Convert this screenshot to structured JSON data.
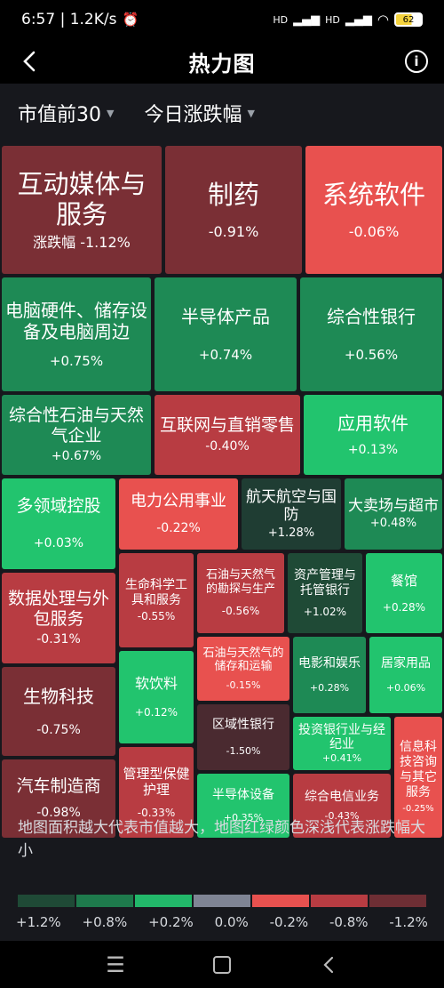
{
  "status": {
    "time": "6:57 | 1.2K/s",
    "net1": "HD",
    "net2": "HD",
    "wifi": "wifi",
    "battery": "62"
  },
  "header": {
    "title": "热力图",
    "back_icon": "chevron-left-icon",
    "info_icon": "info-icon"
  },
  "filters": [
    {
      "label": "市值前30"
    },
    {
      "label": "今日涨跌幅"
    }
  ],
  "colors": {
    "dark_red": "#7a2f35",
    "mid_red": "#b83c42",
    "red": "#e8514f",
    "dark_green": "#1f3d33",
    "mid_green": "#1e8a55",
    "green": "#22c46e",
    "grey": "#7f8494"
  },
  "tiles": [
    {
      "name": "互动媒体与服务",
      "pct": "涨跌幅  -1.12%"
    },
    {
      "name": "制药",
      "pct": "-0.91%"
    },
    {
      "name": "系统软件",
      "pct": "-0.06%"
    },
    {
      "name": "电脑硬件、储存设备及电脑周边",
      "pct": "+0.75%"
    },
    {
      "name": "半导体产品",
      "pct": "+0.74%"
    },
    {
      "name": "综合性银行",
      "pct": "+0.56%"
    },
    {
      "name": "综合性石油与天然气企业",
      "pct": "+0.67%"
    },
    {
      "name": "互联网与直销零售",
      "pct": "-0.40%"
    },
    {
      "name": "应用软件",
      "pct": "+0.13%"
    },
    {
      "name": "多领域控股",
      "pct": "+0.03%"
    },
    {
      "name": "电力公用事业",
      "pct": "-0.22%"
    },
    {
      "name": "航天航空与国防",
      "pct": "+1.28%"
    },
    {
      "name": "大卖场与超市",
      "pct": "+0.48%"
    },
    {
      "name": "数据处理与外包服务",
      "pct": "-0.31%"
    },
    {
      "name": "生命科学工具和服务",
      "pct": "-0.55%"
    },
    {
      "name": "石油与天然气的勘探与生产",
      "pct": "-0.56%"
    },
    {
      "name": "资产管理与托管银行",
      "pct": "+1.02%"
    },
    {
      "name": "餐馆",
      "pct": "+0.28%"
    },
    {
      "name": "生物科技",
      "pct": "-0.75%"
    },
    {
      "name": "软饮料",
      "pct": "+0.12%"
    },
    {
      "name": "石油与天然气的储存和运输",
      "pct": "-0.15%"
    },
    {
      "name": "电影和娱乐",
      "pct": "+0.28%"
    },
    {
      "name": "居家用品",
      "pct": "+0.06%"
    },
    {
      "name": "区域性银行",
      "pct": "-1.50%"
    },
    {
      "name": "投资银行业与经纪业",
      "pct": "+0.41%"
    },
    {
      "name": "汽车制造商",
      "pct": "-0.98%"
    },
    {
      "name": "管理型保健护理",
      "pct": "-0.33%"
    },
    {
      "name": "信息科技咨询与其它服务",
      "pct": "-0.25%"
    },
    {
      "name": "半导体设备",
      "pct": "+0.35%"
    },
    {
      "name": "综合电信业务",
      "pct": "-0.43%"
    }
  ],
  "caption": "地图面积越大代表市值越大，地图红绿颜色深浅代表涨跌幅大小",
  "legend": {
    "colors": [
      "#1f4a36",
      "#1e7a4c",
      "#22b86a",
      "#7f8494",
      "#e8514f",
      "#b83c42",
      "#6e2e34"
    ],
    "labels": [
      "+1.2%",
      "+0.8%",
      "+0.2%",
      "0.0%",
      "-0.2%",
      "-0.8%",
      "-1.2%"
    ]
  },
  "nav": {
    "menu_icon": "menu-icon",
    "home_icon": "home-icon",
    "back_icon": "back-icon"
  }
}
